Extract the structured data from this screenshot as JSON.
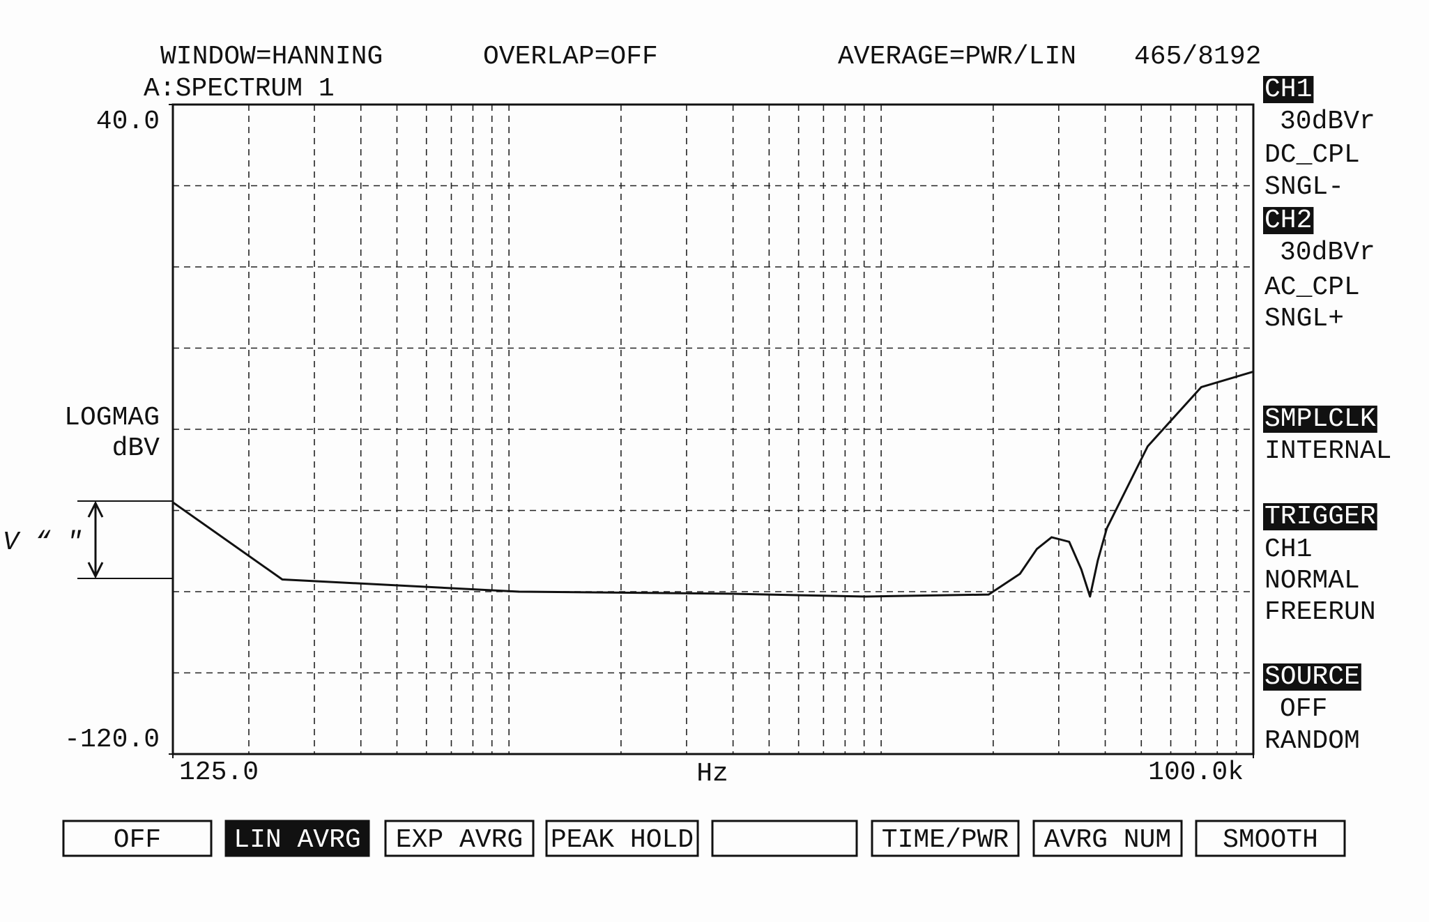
{
  "header": [
    "WINDOW=HANNING",
    "OVERLAP=OFF",
    "AVERAGE=PWR/LIN",
    "465/8192",
    "A:SPECTRUM 1"
  ],
  "panel": [
    {
      "text": "CH1",
      "inverse": true
    },
    {
      "text": "30dBVr",
      "inverse": false
    },
    {
      "text": "DC_CPL",
      "inverse": false
    },
    {
      "text": "SNGL-",
      "inverse": false
    },
    {
      "text": "CH2",
      "inverse": true
    },
    {
      "text": "30dBVr",
      "inverse": false
    },
    {
      "text": "AC_CPL",
      "inverse": false
    },
    {
      "text": "SNGL+",
      "inverse": false
    },
    {
      "text": "SMPLCLK",
      "inverse": true
    },
    {
      "text": "INTERNAL",
      "inverse": false
    },
    {
      "text": "TRIGGER",
      "inverse": true
    },
    {
      "text": "CH1",
      "inverse": false
    },
    {
      "text": "NORMAL",
      "inverse": false
    },
    {
      "text": "FREERUN",
      "inverse": false
    },
    {
      "text": "SOURCE",
      "inverse": true
    },
    {
      "text": "OFF",
      "inverse": false
    },
    {
      "text": "RANDOM",
      "inverse": false
    }
  ],
  "buttons": [
    {
      "text": "OFF",
      "active": false
    },
    {
      "text": "LIN AVRG",
      "active": true
    },
    {
      "text": "EXP AVRG",
      "active": false
    },
    {
      "text": "PEAK HOLD",
      "active": false
    },
    {
      "text": "TIME/PWR",
      "active": false
    },
    {
      "text": "AVRG NUM",
      "active": false
    },
    {
      "text": "SMOOTH",
      "active": false
    }
  ],
  "annotation": "V “ ″",
  "chart_data": {
    "type": "line",
    "xlabel": "Hz",
    "ylabel": [
      "LOGMAG",
      "dBV"
    ],
    "xlog": true,
    "xlim": [
      125,
      100000
    ],
    "ylim": [
      -120,
      40
    ],
    "xticks": [
      {
        "value": 125,
        "label": "125.0"
      },
      {
        "value": 100000,
        "label": "100.0k"
      }
    ],
    "yticks": [
      {
        "value": 40,
        "label": "40.0"
      },
      {
        "value": -120,
        "label": "-120.0"
      }
    ],
    "grid_x": [
      200,
      300,
      400,
      500,
      600,
      700,
      800,
      900,
      1000,
      2000,
      3000,
      4000,
      5000,
      6000,
      7000,
      8000,
      9000,
      10000,
      20000,
      30000,
      40000,
      50000,
      60000,
      70000,
      80000,
      90000
    ],
    "grid_y": [
      20,
      0,
      -20,
      -40,
      -60,
      -80,
      -100
    ],
    "color": "#111111",
    "x": [
      125,
      246,
      1064,
      3890,
      9060,
      19450,
      23600,
      26200,
      28700,
      32000,
      34500,
      36400,
      38200,
      40400,
      52000,
      72500,
      100000
    ],
    "values": [
      -58,
      -77,
      -80,
      -80.5,
      -81.2,
      -80.7,
      -75.6,
      -69.5,
      -66.6,
      -67.7,
      -74.5,
      -81.2,
      -72.3,
      -64.4,
      -44.2,
      -29.6,
      -25.8
    ]
  }
}
